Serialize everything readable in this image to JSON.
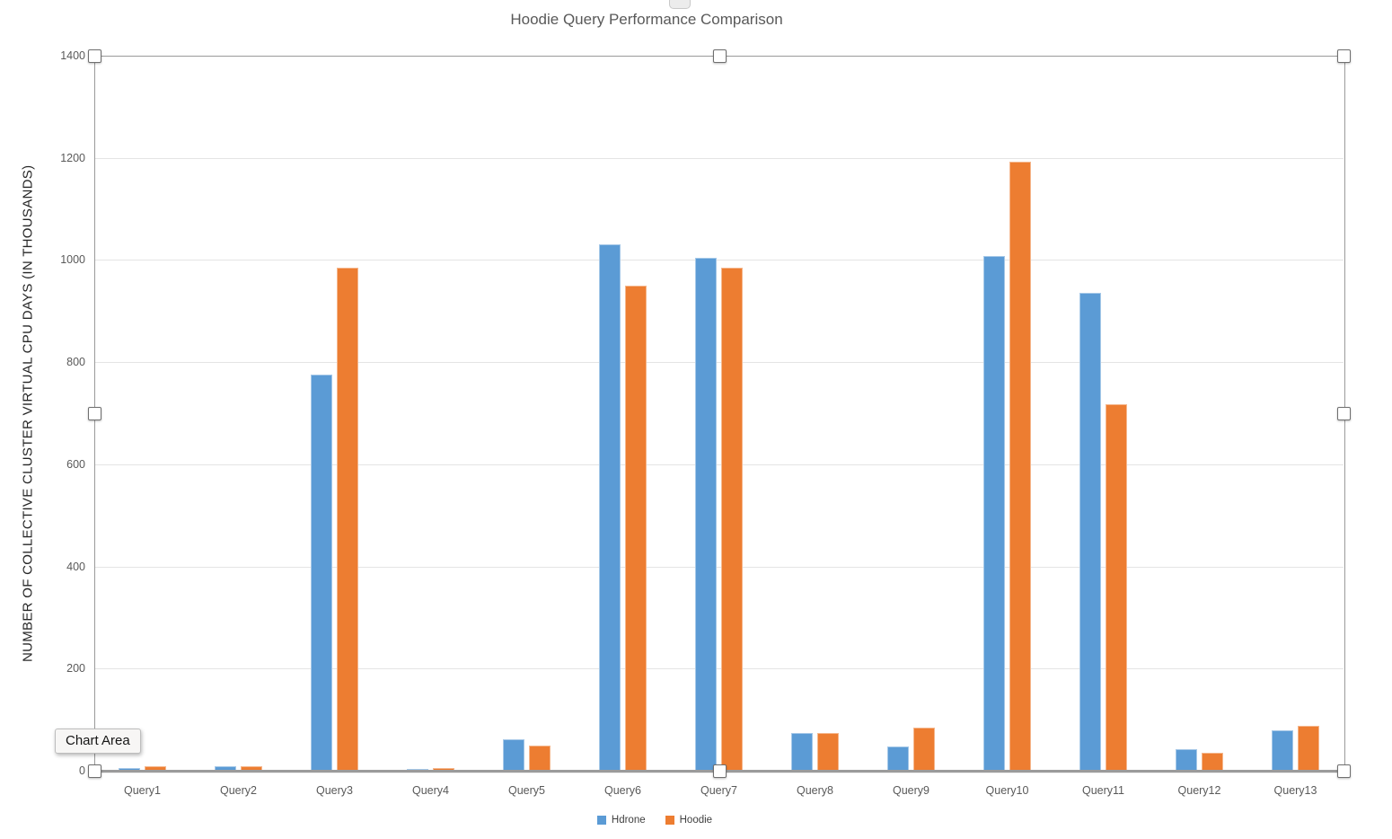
{
  "chart_data": {
    "type": "bar",
    "title": "Hoodie Query Performance Comparison",
    "xlabel": "",
    "ylabel": "NUMBER OF COLLECTIVE CLUSTER VIRTUAL CPU DAYS (IN THOUSANDS)",
    "categories": [
      "Query1",
      "Query2",
      "Query3",
      "Query4",
      "Query5",
      "Query6",
      "Query7",
      "Query8",
      "Query9",
      "Query10",
      "Query11",
      "Query12",
      "Query13"
    ],
    "series": [
      {
        "name": "Hdrone",
        "color": "#5B9BD5",
        "values": [
          5,
          9,
          775,
          4,
          62,
          1030,
          1005,
          73,
          48,
          1008,
          935,
          42,
          80
        ]
      },
      {
        "name": "Hoodie",
        "color": "#ED7D31",
        "values": [
          8,
          9,
          985,
          5,
          50,
          950,
          985,
          73,
          85,
          1193,
          718,
          35,
          88
        ]
      }
    ],
    "ylim": [
      0,
      1400
    ],
    "yticks": [
      0,
      200,
      400,
      600,
      800,
      1000,
      1200,
      1400
    ],
    "grid": true,
    "legend_position": "bottom"
  },
  "tooltip": {
    "label": "Chart Area"
  },
  "selection": {
    "state": "chart-selected",
    "handle_count": 8
  },
  "colors": {
    "series_hdrone": "#5B9BD5",
    "series_hoodie": "#ED7D31",
    "title_text": "#595959",
    "axis_text": "#595959",
    "gridline": "#E4E4E4",
    "axis_line": "#9B9B9B"
  }
}
